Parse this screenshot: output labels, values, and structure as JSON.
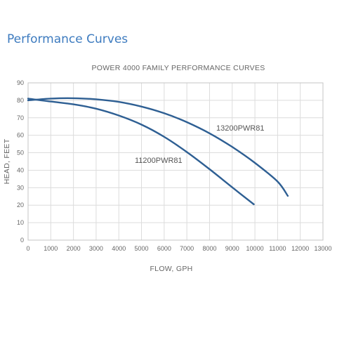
{
  "page": {
    "heading": "Performance Curves"
  },
  "chart_data": {
    "type": "line",
    "title": "POWER 4000 FAMILY PERFORMANCE CURVES",
    "xlabel": "FLOW, GPH",
    "ylabel": "HEAD, FEET",
    "xlim": [
      0,
      13000
    ],
    "ylim": [
      0,
      90
    ],
    "x_ticks": [
      0,
      1000,
      2000,
      3000,
      4000,
      5000,
      6000,
      7000,
      8000,
      9000,
      10000,
      11000,
      12000,
      13000
    ],
    "y_ticks": [
      0,
      10,
      20,
      30,
      40,
      50,
      60,
      70,
      80,
      90
    ],
    "grid": true,
    "line_color": "#2e5f93",
    "series": [
      {
        "name": "11200PWR81",
        "x": [
          0,
          1000,
          2000,
          3000,
          4000,
          5000,
          6000,
          7000,
          8000,
          9000,
          9950
        ],
        "y": [
          81,
          79.3,
          77.7,
          75.2,
          71.3,
          66.1,
          59.1,
          50.4,
          40.6,
          30.2,
          20.5
        ]
      },
      {
        "name": "13200PWR81",
        "x": [
          0,
          1000,
          2000,
          3000,
          4000,
          5000,
          6000,
          7000,
          8000,
          9000,
          10000,
          11000,
          11450
        ],
        "y": [
          80,
          81,
          81.2,
          80.6,
          79.1,
          76.4,
          72.6,
          67.5,
          61.1,
          53.3,
          44.2,
          33.5,
          25.3
        ]
      }
    ]
  }
}
